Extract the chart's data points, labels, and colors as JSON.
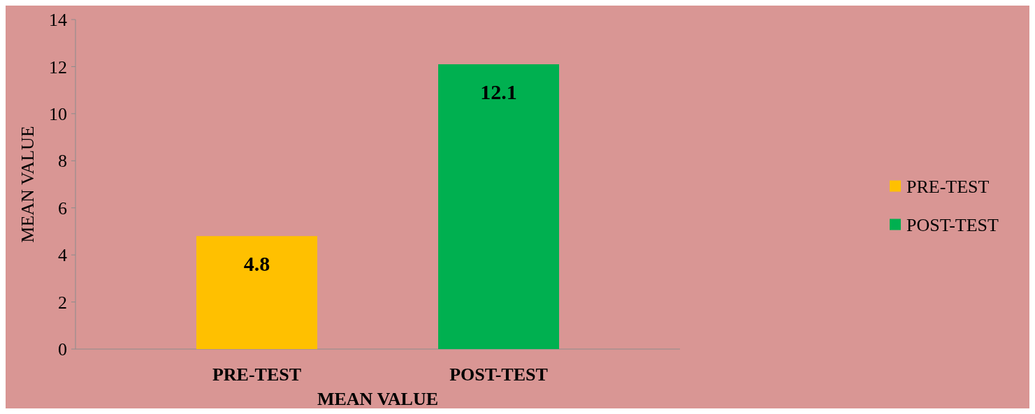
{
  "chart_data": {
    "type": "bar",
    "categories": [
      "PRE-TEST",
      "POST-TEST"
    ],
    "series": [
      {
        "name": "PRE-TEST",
        "color": "#ffc000",
        "values": [
          4.8,
          null
        ]
      },
      {
        "name": "POST-TEST",
        "color": "#00b050",
        "values": [
          null,
          12.1
        ]
      }
    ],
    "ylim": [
      0,
      14
    ],
    "yticks": [
      0,
      2,
      4,
      6,
      8,
      10,
      12,
      14
    ],
    "ylabel": "MEAN VALUE",
    "xlabel": "MEAN VALUE",
    "data_labels": true,
    "legend": "right"
  }
}
